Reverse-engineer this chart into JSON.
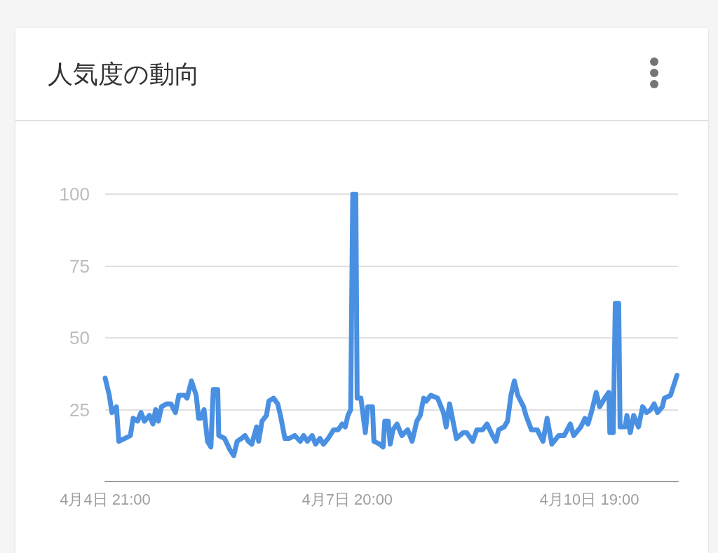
{
  "chart_data": {
    "type": "line",
    "title": "人気度の動向",
    "x": [
      "--04-04T21:00",
      "--04-04T22:12",
      "--04-04T23:00",
      "--04-05T00:18",
      "--04-05T01:00",
      "--04-05T02:48",
      "--04-05T04:24",
      "--04-05T05:12",
      "--04-05T06:30",
      "--04-05T07:30",
      "--04-05T08:30",
      "--04-05T10:00",
      "--04-05T11:00",
      "--04-05T11:48",
      "--04-05T12:36",
      "--04-05T13:30",
      "--04-05T15:00",
      "--04-05T16:18",
      "--04-05T17:36",
      "--04-05T18:36",
      "--04-05T20:18",
      "--04-05T21:00",
      "--04-05T22:18",
      "--04-05T23:42",
      "--04-06T00:24",
      "--04-06T01:00",
      "--04-06T02:00",
      "--04-06T03:00",
      "--04-06T04:00",
      "--04-06T04:42",
      "--04-06T06:00",
      "--04-06T06:18",
      "--04-06T08:00",
      "--04-06T09:36",
      "--04-06T10:42",
      "--04-06T11:42",
      "--04-06T13:00",
      "--04-06T14:00",
      "--04-06T15:00",
      "--04-06T16:00",
      "--04-06T17:24",
      "--04-06T18:00",
      "--04-06T19:00",
      "--04-06T20:18",
      "--04-06T21:00",
      "--04-06T22:24",
      "--04-06T23:36",
      "--04-07T00:24",
      "--04-07T01:42",
      "--04-07T03:00",
      "--04-07T04:36",
      "--04-07T06:12",
      "--04-07T07:12",
      "--04-07T08:18",
      "--04-07T09:42",
      "--04-07T10:42",
      "--04-07T12:00",
      "--04-07T13:00",
      "--04-07T14:24",
      "--04-07T16:00",
      "--04-07T17:18",
      "--04-07T18:30",
      "--04-07T19:24",
      "--04-07T20:12",
      "--04-07T21:00",
      "--04-07T21:36",
      "--04-07T22:30",
      "--04-07T22:54",
      "--04-08T00:00",
      "--04-08T01:18",
      "--04-08T02:00",
      "--04-08T03:24",
      "--04-08T03:48",
      "--04-08T05:30",
      "--04-08T06:30",
      "--04-08T07:00",
      "--04-08T08:00",
      "--04-08T08:36",
      "--04-08T09:24",
      "--04-08T10:36",
      "--04-08T12:00",
      "--04-08T13:42",
      "--04-08T15:00",
      "--04-08T16:24",
      "--04-08T17:24",
      "--04-08T18:24",
      "--04-08T19:12",
      "--04-08T20:30",
      "--04-08T22:30",
      "--04-09T00:12",
      "--04-09T01:00",
      "--04-09T02:00",
      "--04-09T04:00",
      "--04-09T06:00",
      "--04-09T07:00",
      "--04-09T08:48",
      "--04-09T10:00",
      "--04-09T11:42",
      "--04-09T13:00",
      "--04-09T14:36",
      "--04-09T15:36",
      "--04-09T16:24",
      "--04-09T18:00",
      "--04-09T19:00",
      "--04-09T20:00",
      "--04-09T21:00",
      "--04-09T22:00",
      "--04-09T23:42",
      "--04-10T00:24",
      "--04-10T02:00",
      "--04-10T03:42",
      "--04-10T05:24",
      "--04-10T06:36",
      "--04-10T08:00",
      "--04-10T10:00",
      "--04-10T11:36",
      "--04-10T13:24",
      "--04-10T14:24",
      "--04-10T16:30",
      "--04-10T17:42",
      "--04-10T18:36",
      "--04-10T19:48",
      "--04-10T21:00",
      "--04-10T22:00",
      "--04-10T23:30",
      "--04-11T00:42",
      "--04-11T01:00",
      "--04-11T02:00",
      "--04-11T02:36",
      "--04-11T03:36",
      "--04-11T04:00",
      "--04-11T05:30",
      "--04-11T06:00",
      "--04-11T07:00",
      "--04-11T08:00",
      "--04-11T09:24",
      "--04-11T10:36",
      "--04-11T11:48",
      "--04-11T13:00",
      "--04-11T14:00",
      "--04-11T15:00",
      "--04-11T16:24",
      "--04-11T17:00",
      "--04-11T18:48",
      "--04-11T20:42"
    ],
    "series": [
      {
        "color": "#4a90e2",
        "values": [
          36,
          30,
          24,
          26,
          14,
          15,
          16,
          22,
          21,
          24,
          21,
          23,
          20,
          25,
          21,
          26,
          27,
          27,
          24,
          30,
          30,
          29,
          35,
          30,
          22,
          22,
          25,
          14,
          12,
          32,
          32,
          16,
          15,
          11,
          9,
          14,
          15,
          16,
          14,
          13,
          19,
          14,
          21,
          23,
          28,
          29,
          27,
          23,
          15,
          15,
          16,
          14,
          16,
          14,
          16,
          13,
          15,
          13,
          15,
          18,
          18,
          20,
          19,
          23,
          25,
          100,
          100,
          29,
          29,
          17,
          26,
          26,
          14,
          13,
          12,
          21,
          21,
          13,
          18,
          20,
          16,
          18,
          14,
          21,
          23,
          29,
          28,
          30,
          29,
          24,
          19,
          27,
          15,
          17,
          17,
          14,
          18,
          18,
          20,
          16,
          14,
          18,
          19,
          21,
          30,
          35,
          30,
          26,
          23,
          18,
          18,
          14,
          22,
          13,
          16,
          16,
          20,
          16,
          19,
          22,
          20,
          25,
          31,
          26,
          29,
          31,
          17,
          17,
          62,
          62,
          19,
          19,
          23,
          17,
          23,
          19,
          26,
          24,
          25,
          27,
          24,
          26,
          29,
          30,
          37
        ]
      }
    ],
    "xlim": [
      "--04-04T21:00",
      "--04-11T21:00"
    ],
    "xticks": [
      {
        "value": "--04-04T21:00",
        "label": "4月4日 21:00"
      },
      {
        "value": "--04-07T20:00",
        "label": "4月7日 20:00"
      },
      {
        "value": "--04-10T19:00",
        "label": "4月10日 19:00"
      }
    ],
    "ylim": [
      0,
      100
    ],
    "yticks": [
      25,
      50,
      75,
      100
    ],
    "grid": "y",
    "marker": "none",
    "line_style": "solid"
  }
}
